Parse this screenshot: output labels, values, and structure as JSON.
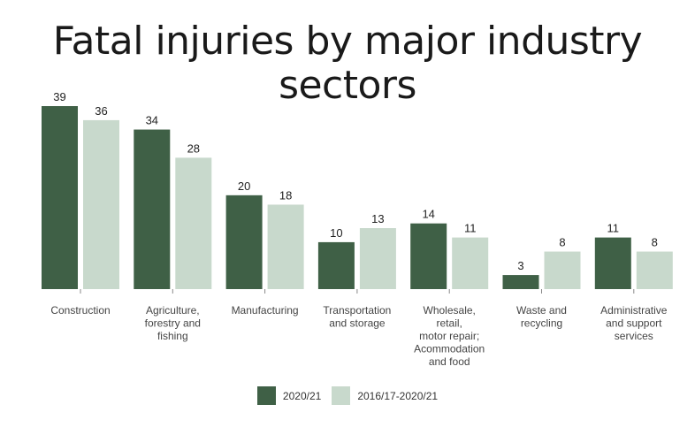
{
  "chart_data": {
    "type": "bar",
    "title": "Fatal injuries by major industry sectors",
    "categories": [
      [
        "Construction"
      ],
      [
        "Agriculture,",
        "forestry and",
        "fishing"
      ],
      [
        "Manufacturing"
      ],
      [
        "Transportation",
        "and storage"
      ],
      [
        "Wholesale,",
        "retail,",
        "motor repair;",
        "Acommodation",
        "and food"
      ],
      [
        "Waste and",
        "recycling"
      ],
      [
        "Administrative",
        "and support",
        "services"
      ]
    ],
    "series": [
      {
        "name": "2020/21",
        "color": "#3f6046",
        "values": [
          39,
          34,
          20,
          10,
          14,
          3,
          11
        ]
      },
      {
        "name": "2016/17-2020/21",
        "color": "#c8d9cc",
        "values": [
          36,
          28,
          18,
          13,
          11,
          8,
          8
        ]
      }
    ],
    "ylim": [
      0,
      39
    ],
    "grid": false,
    "legend_position": "bottom"
  }
}
